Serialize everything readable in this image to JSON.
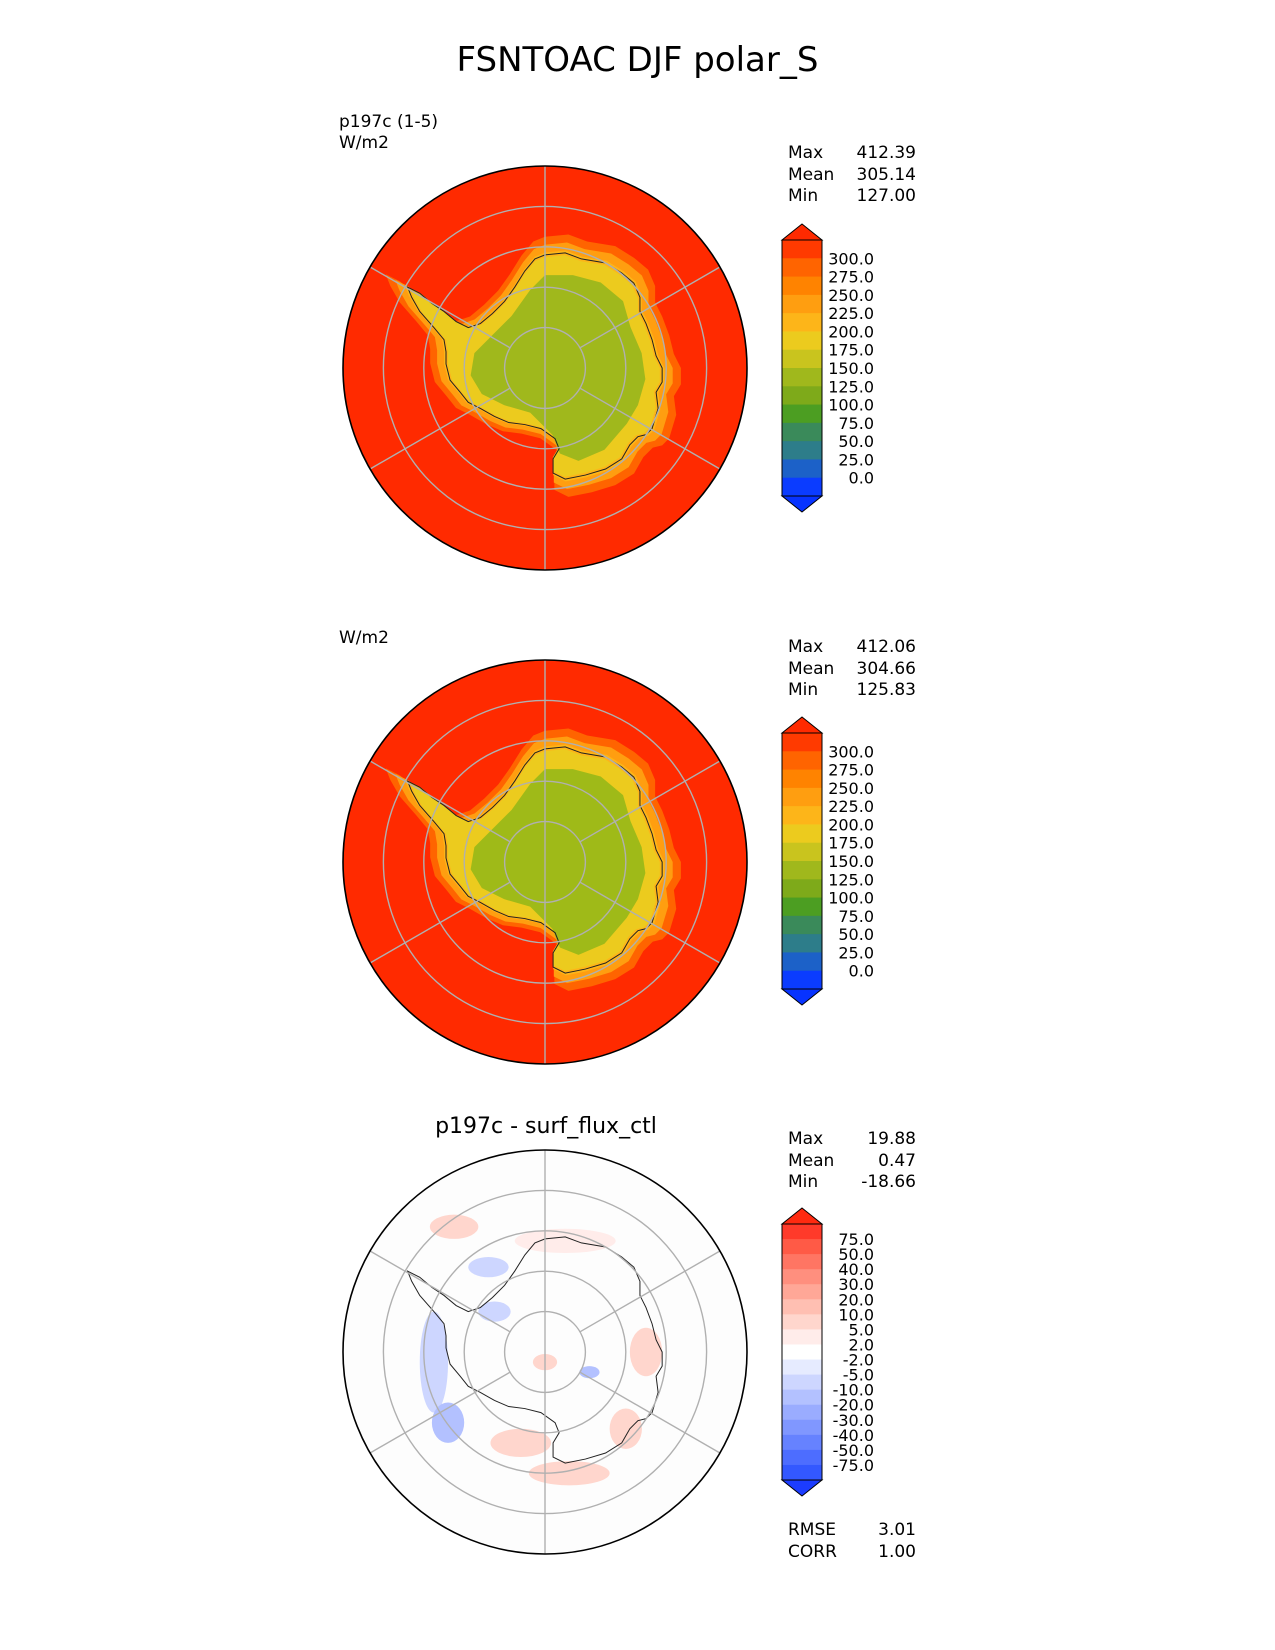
{
  "title": "FSNTOAC DJF polar_S",
  "colors": {
    "ocean_red": "#ff2a00",
    "land_green": "#9fba18",
    "coast": "#222222",
    "grid": "#b0b0b0"
  },
  "panels": [
    {
      "label_line1": "p197c (1-5)",
      "label_line2": "W/m2",
      "title": "",
      "stats": [
        {
          "name": "Max",
          "value": "412.39"
        },
        {
          "name": "Mean",
          "value": "305.14"
        },
        {
          "name": "Min",
          "value": "127.00"
        }
      ],
      "colorbar": {
        "labels": [
          "300.0",
          "275.0",
          "250.0",
          "225.0",
          "200.0",
          "175.0",
          "150.0",
          "125.0",
          "100.0",
          "75.0",
          "50.0",
          "25.0",
          "0.0"
        ],
        "colors": [
          "#ff3a00",
          "#ff6400",
          "#ff8300",
          "#ff9e10",
          "#fdb519",
          "#eccb1e",
          "#c9c41e",
          "#a0b81c",
          "#7eaa1a",
          "#4c9e22",
          "#3a8a5a",
          "#2d7d8a",
          "#1c61c8",
          "#0b3cff"
        ],
        "top_color": "#ff2a00",
        "bottom_color": "#0733ff"
      }
    },
    {
      "label_line1": "",
      "label_line2": "W/m2",
      "title": "",
      "stats": [
        {
          "name": "Max",
          "value": "412.06"
        },
        {
          "name": "Mean",
          "value": "304.66"
        },
        {
          "name": "Min",
          "value": "125.83"
        }
      ],
      "colorbar": {
        "labels": [
          "300.0",
          "275.0",
          "250.0",
          "225.0",
          "200.0",
          "175.0",
          "150.0",
          "125.0",
          "100.0",
          "75.0",
          "50.0",
          "25.0",
          "0.0"
        ],
        "colors": [
          "#ff3a00",
          "#ff6400",
          "#ff8300",
          "#ff9e10",
          "#fdb519",
          "#eccb1e",
          "#c9c41e",
          "#a0b81c",
          "#7eaa1a",
          "#4c9e22",
          "#3a8a5a",
          "#2d7d8a",
          "#1c61c8",
          "#0b3cff"
        ],
        "top_color": "#ff2a00",
        "bottom_color": "#0733ff"
      }
    },
    {
      "label_line1": "",
      "label_line2": "",
      "title": "p197c - surf_flux_ctl",
      "stats": [
        {
          "name": "Max",
          "value": "19.88"
        },
        {
          "name": "Mean",
          "value": "0.47"
        },
        {
          "name": "Min",
          "value": "-18.66"
        }
      ],
      "colorbar": {
        "labels": [
          "75.0",
          "50.0",
          "40.0",
          "30.0",
          "20.0",
          "10.0",
          "5.0",
          "2.0",
          "-2.0",
          "-5.0",
          "-10.0",
          "-20.0",
          "-30.0",
          "-40.0",
          "-50.0",
          "-75.0"
        ],
        "colors": [
          "#ff3a2a",
          "#ff5a46",
          "#ff7563",
          "#ff8f7e",
          "#ffa797",
          "#ffbfb2",
          "#ffd6cd",
          "#ffecea",
          "#ffffff",
          "#e6ebff",
          "#cdd6ff",
          "#b3c1ff",
          "#9aacff",
          "#8097ff",
          "#6682ff",
          "#4d6dff",
          "#3358ff"
        ],
        "top_color": "#ff2a10",
        "bottom_color": "#1c3cff"
      },
      "metrics": [
        {
          "name": "RMSE",
          "value": "3.01"
        },
        {
          "name": "CORR",
          "value": "1.00"
        }
      ]
    }
  ],
  "chart_data": [
    {
      "type": "heatmap",
      "projection": "south-polar-stereographic",
      "title": "",
      "units": "W/m2",
      "colorbar_levels": [
        0,
        25,
        50,
        75,
        100,
        125,
        150,
        175,
        200,
        225,
        250,
        275,
        300
      ],
      "stats": {
        "max": 412.39,
        "mean": 305.14,
        "min": 127.0
      }
    },
    {
      "type": "heatmap",
      "projection": "south-polar-stereographic",
      "title": "",
      "units": "W/m2",
      "colorbar_levels": [
        0,
        25,
        50,
        75,
        100,
        125,
        150,
        175,
        200,
        225,
        250,
        275,
        300
      ],
      "stats": {
        "max": 412.06,
        "mean": 304.66,
        "min": 125.83
      }
    },
    {
      "type": "heatmap",
      "projection": "south-polar-stereographic",
      "title": "p197c - surf_flux_ctl",
      "colorbar_levels": [
        -75,
        -50,
        -40,
        -30,
        -20,
        -10,
        -5,
        -2,
        2,
        5,
        10,
        20,
        30,
        40,
        50,
        75
      ],
      "stats": {
        "max": 19.88,
        "mean": 0.47,
        "min": -18.66,
        "rmse": 3.01,
        "corr": 1.0
      }
    }
  ]
}
